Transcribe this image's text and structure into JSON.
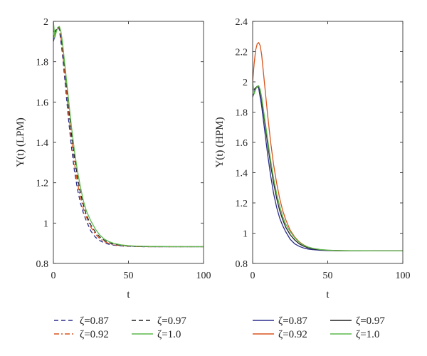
{
  "chart_data": [
    {
      "type": "line",
      "xlabel": "t",
      "ylabel": "Y(t) (LPM)",
      "xlim": [
        0,
        100
      ],
      "ylim": [
        0.8,
        2.0
      ],
      "x_ticks": [
        "0",
        "50",
        "100"
      ],
      "y_ticks": [
        "0.8",
        "1",
        "1.2",
        "1.4",
        "1.6",
        "1.8",
        "2"
      ],
      "x": [
        0,
        1,
        2,
        3,
        4,
        5,
        6,
        8,
        10,
        12,
        14,
        16,
        18,
        20,
        22,
        25,
        28,
        31,
        34,
        37,
        40,
        45,
        50,
        55,
        60,
        65,
        70,
        80,
        90,
        100
      ],
      "series": [
        {
          "name": "ζ=0.87",
          "color": "#2b2d8c",
          "dash": "dashed",
          "values": [
            1.9,
            1.93,
            1.96,
            1.97,
            1.96,
            1.9,
            1.84,
            1.68,
            1.52,
            1.38,
            1.26,
            1.17,
            1.1,
            1.05,
            1.01,
            0.96,
            0.93,
            0.913,
            0.902,
            0.895,
            0.891,
            0.887,
            0.885,
            0.884,
            0.883,
            0.883,
            0.883,
            0.883,
            0.883,
            0.883
          ]
        },
        {
          "name": "ζ=0.92",
          "color": "#d9541e",
          "dash": "dashdot",
          "values": [
            1.92,
            1.94,
            1.96,
            1.97,
            1.965,
            1.92,
            1.86,
            1.71,
            1.56,
            1.42,
            1.3,
            1.2,
            1.13,
            1.07,
            1.03,
            0.98,
            0.945,
            0.922,
            0.908,
            0.899,
            0.893,
            0.888,
            0.886,
            0.884,
            0.883,
            0.883,
            0.883,
            0.883,
            0.883,
            0.883
          ]
        },
        {
          "name": "ζ=0.97",
          "color": "#222222",
          "dash": "dashed",
          "values": [
            1.95,
            1.95,
            1.96,
            1.97,
            1.97,
            1.94,
            1.88,
            1.74,
            1.59,
            1.45,
            1.33,
            1.23,
            1.15,
            1.09,
            1.04,
            0.99,
            0.955,
            0.93,
            0.914,
            0.903,
            0.896,
            0.89,
            0.887,
            0.885,
            0.884,
            0.883,
            0.883,
            0.883,
            0.883,
            0.883
          ]
        },
        {
          "name": "ζ=1.0",
          "color": "#5cb84a",
          "dash": "solid",
          "values": [
            2.0,
            1.92,
            1.95,
            1.97,
            1.975,
            1.95,
            1.9,
            1.76,
            1.62,
            1.48,
            1.36,
            1.26,
            1.18,
            1.11,
            1.06,
            1.01,
            0.97,
            0.94,
            0.92,
            0.908,
            0.9,
            0.892,
            0.888,
            0.886,
            0.885,
            0.884,
            0.884,
            0.883,
            0.883,
            0.883
          ]
        }
      ]
    },
    {
      "type": "line",
      "xlabel": "t",
      "ylabel": "Y(t) (HPM)",
      "xlim": [
        0,
        100
      ],
      "ylim": [
        0.8,
        2.4
      ],
      "x_ticks": [
        "0",
        "50",
        "100"
      ],
      "y_ticks": [
        "0.8",
        "1",
        "1.2",
        "1.4",
        "1.6",
        "1.8",
        "2",
        "2.2",
        "2.4"
      ],
      "x": [
        0,
        1,
        2,
        3,
        4,
        5,
        6,
        8,
        10,
        12,
        14,
        16,
        18,
        20,
        22,
        25,
        28,
        31,
        34,
        37,
        40,
        45,
        50,
        55,
        60,
        65,
        70,
        80,
        90,
        100
      ],
      "series": [
        {
          "name": "ζ=0.87",
          "color": "#2b2d8c",
          "dash": "solid",
          "values": [
            1.9,
            1.93,
            1.96,
            1.97,
            1.96,
            1.9,
            1.84,
            1.68,
            1.52,
            1.38,
            1.26,
            1.17,
            1.1,
            1.05,
            1.01,
            0.96,
            0.93,
            0.913,
            0.902,
            0.895,
            0.891,
            0.887,
            0.885,
            0.884,
            0.883,
            0.883,
            0.883,
            0.883,
            0.883,
            0.883
          ]
        },
        {
          "name": "ζ=0.92",
          "color": "#d9541e",
          "dash": "solid",
          "values": [
            2.0,
            2.12,
            2.21,
            2.25,
            2.26,
            2.24,
            2.18,
            1.98,
            1.78,
            1.6,
            1.45,
            1.33,
            1.23,
            1.15,
            1.09,
            1.02,
            0.975,
            0.943,
            0.922,
            0.908,
            0.899,
            0.891,
            0.887,
            0.885,
            0.884,
            0.883,
            0.883,
            0.883,
            0.883,
            0.883
          ]
        },
        {
          "name": "ζ=0.97",
          "color": "#222222",
          "dash": "solid",
          "values": [
            1.95,
            1.95,
            1.96,
            1.97,
            1.97,
            1.94,
            1.88,
            1.74,
            1.59,
            1.45,
            1.33,
            1.23,
            1.15,
            1.09,
            1.04,
            0.99,
            0.955,
            0.93,
            0.914,
            0.903,
            0.896,
            0.89,
            0.887,
            0.885,
            0.884,
            0.883,
            0.883,
            0.883,
            0.883,
            0.883
          ]
        },
        {
          "name": "ζ=1.0",
          "color": "#5cb84a",
          "dash": "solid",
          "values": [
            2.0,
            1.92,
            1.95,
            1.97,
            1.975,
            1.95,
            1.9,
            1.76,
            1.62,
            1.48,
            1.36,
            1.26,
            1.18,
            1.11,
            1.06,
            1.01,
            0.97,
            0.94,
            0.92,
            0.908,
            0.9,
            0.892,
            0.888,
            0.886,
            0.885,
            0.884,
            0.884,
            0.883,
            0.883,
            0.883
          ]
        }
      ]
    }
  ]
}
